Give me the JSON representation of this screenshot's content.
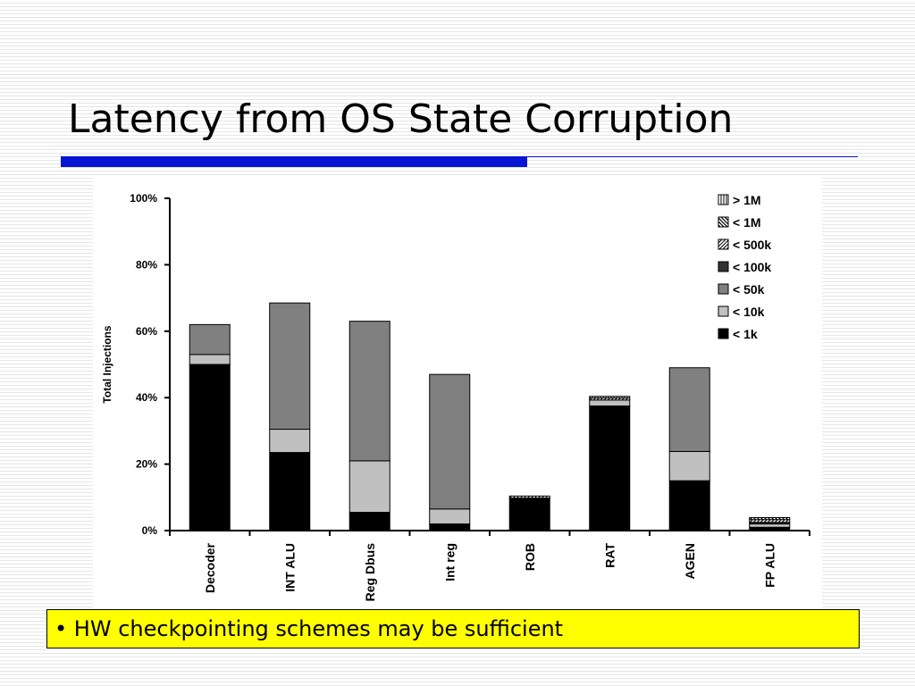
{
  "slide": {
    "title": "Latency from OS State Corruption",
    "bullet_mark": "•",
    "bullet_text": "HW checkpointing schemes may be sufficient",
    "accent_color": "#0a14d4",
    "box_color": "#ffff00"
  },
  "chart_data": {
    "type": "bar",
    "stacked": true,
    "ylabel": "Total Injections",
    "ylim": [
      0,
      100
    ],
    "yticks": [
      0,
      20,
      40,
      60,
      80,
      100
    ],
    "ytick_labels": [
      "0%",
      "20%",
      "40%",
      "60%",
      "80%",
      "100%"
    ],
    "categories": [
      "Decoder",
      "INT ALU",
      "Reg Dbus",
      "Int reg",
      "ROB",
      "RAT",
      "AGEN",
      "FP ALU"
    ],
    "series": [
      {
        "name": "< 1k",
        "color": "#000000",
        "pattern": "solid",
        "values": [
          50.0,
          23.5,
          5.5,
          2.0,
          9.8,
          37.5,
          15.0,
          1.0
        ]
      },
      {
        "name": "< 10k",
        "color": "#c0c0c0",
        "pattern": "solid",
        "values": [
          3.0,
          7.0,
          15.5,
          4.5,
          0,
          1.8,
          8.8,
          1.0
        ]
      },
      {
        "name": "< 50k",
        "color": "#808080",
        "pattern": "solid",
        "values": [
          9.0,
          38.0,
          42.0,
          40.5,
          0,
          0,
          25.2,
          0
        ]
      },
      {
        "name": "< 100k",
        "color": "#333333",
        "pattern": "solid",
        "values": [
          0,
          0,
          0,
          0,
          0,
          0,
          0,
          0.5
        ]
      },
      {
        "name": "< 500k",
        "color": "#000000",
        "pattern": "diagonal",
        "values": [
          0,
          0,
          0,
          0,
          0.6,
          0.6,
          0,
          0.8
        ]
      },
      {
        "name": "< 1M",
        "color": "#000000",
        "pattern": "backdiagonal",
        "values": [
          0,
          0,
          0,
          0,
          0,
          0,
          0,
          0.6
        ]
      },
      {
        "name": "> 1M",
        "color": "#000000",
        "pattern": "vertical",
        "values": [
          0,
          0,
          0,
          0,
          0,
          0.5,
          0,
          0
        ]
      }
    ],
    "legend_position": "top-right",
    "legend_order": [
      "> 1M",
      "< 1M",
      "< 500k",
      "< 100k",
      "< 50k",
      "< 10k",
      "< 1k"
    ],
    "grid": false
  }
}
